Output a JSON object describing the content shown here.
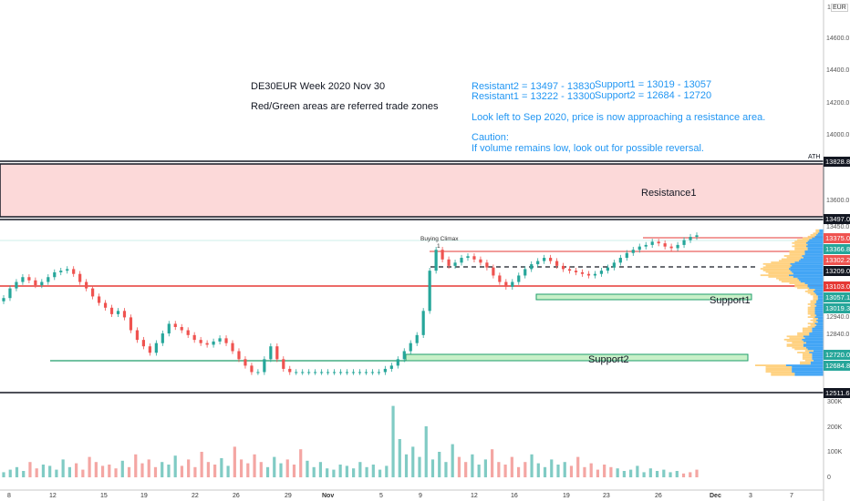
{
  "annotations": {
    "title": "DE30EUR Week 2020 Nov 30",
    "subtitle": "Red/Green areas are referred trade zones",
    "resistant2": "Resistant2 = 13497 - 13830",
    "resistant1": "Resistant1 = 13222 - 13300",
    "support1": "Support1 = 13019 - 13057",
    "support2": "Support2 = 12684 - 12720",
    "note": "Look left to Sep 2020, price is now approaching a resistance area.",
    "caution_title": "Caution:",
    "caution_text": "If volume remains low, look out for possible reversal.",
    "buying_climax": "Buying Climax",
    "buying_climax_mark": "1",
    "ath": "ATH",
    "resistance1_label": "Resistance1",
    "support1_label": "Support1",
    "support2_label": "Support2"
  },
  "axis": {
    "currency": "EUR",
    "top_tick": "1",
    "price_ticks": [
      "14600.0",
      "14400.0",
      "14200.0",
      "14000.0",
      "13600.0",
      "13450.0",
      "12940.0",
      "12840.0"
    ],
    "volume_ticks": [
      "300K",
      "200K",
      "100K",
      "0"
    ],
    "x_ticks": [
      "8",
      "12",
      "15",
      "19",
      "22",
      "26",
      "29",
      "Nov",
      "5",
      "9",
      "12",
      "16",
      "19",
      "23",
      "26",
      "Dec",
      "3",
      "7"
    ]
  },
  "price_labels": [
    {
      "text": "13828.8",
      "color": "#131722"
    },
    {
      "text": "13497.0",
      "color": "#131722"
    },
    {
      "text": "13375.0",
      "color": "#ef5350"
    },
    {
      "text": "13366.8",
      "color": "#26a69a"
    },
    {
      "text": "13302.2",
      "color": "#ef5350"
    },
    {
      "text": "13209.0",
      "color": "#131722"
    },
    {
      "text": "13103.0",
      "color": "#e53935"
    },
    {
      "text": "13057.1",
      "color": "#26a69a"
    },
    {
      "text": "13019.3",
      "color": "#26a69a"
    },
    {
      "text": "12720.0",
      "color": "#26a69a"
    },
    {
      "text": "12684.8",
      "color": "#26a69a"
    },
    {
      "text": "12511.6",
      "color": "#131722"
    }
  ],
  "colors": {
    "up": "#26a69a",
    "down": "#ef5350",
    "resistance_zone": "#fcd9d9",
    "support_zone": "#c8f0c8",
    "support_line": "#1e9e6a",
    "red_line": "#e53935",
    "profile_up": "#42a5f5",
    "profile_down": "#ffd180"
  },
  "chart_data": {
    "type": "candlestick",
    "symbol": "DE30EUR",
    "y_axis": {
      "min": 12500,
      "max": 14700,
      "unit": "EUR"
    },
    "levels": {
      "ath": 13828.8,
      "resistance2": [
        13497,
        13830
      ],
      "resistance1": [
        13222,
        13300
      ],
      "support1": [
        13019,
        13057
      ],
      "support2": [
        12684,
        12720
      ],
      "red_line": 13103.0,
      "dashed_line": 13209.0,
      "bottom_line": 12511.6
    },
    "price_close_series": [
      12980,
      13040,
      13080,
      13110,
      13090,
      13060,
      13080,
      13110,
      13140,
      13150,
      13160,
      13130,
      13080,
      13040,
      12990,
      12950,
      12920,
      12880,
      12900,
      12860,
      12780,
      12720,
      12680,
      12640,
      12700,
      12760,
      12820,
      12800,
      12780,
      12750,
      12720,
      12700,
      12690,
      12710,
      12730,
      12700,
      12650,
      12600,
      12560,
      12520,
      12520,
      12600,
      12680,
      12600,
      12540,
      12520,
      12520,
      12520,
      12520,
      12520,
      12520,
      12520,
      12520,
      12520,
      12520,
      12520,
      12520,
      12520,
      12520,
      12520,
      12540,
      12560,
      12600,
      12650,
      12700,
      12750,
      12900,
      13150,
      13280,
      13220,
      13180,
      13200,
      13230,
      13240,
      13220,
      13200,
      13170,
      13120,
      13080,
      13050,
      13080,
      13120,
      13160,
      13190,
      13210,
      13230,
      13210,
      13180,
      13160,
      13150,
      13140,
      13130,
      13120,
      13130,
      13150,
      13170,
      13200,
      13230,
      13260,
      13280,
      13300,
      13310,
      13330,
      13320,
      13300,
      13290,
      13310,
      13340,
      13360,
      13370
    ],
    "volume_series_k": [
      20,
      30,
      40,
      25,
      60,
      35,
      50,
      45,
      30,
      70,
      40,
      55,
      30,
      80,
      60,
      45,
      50,
      35,
      65,
      40,
      90,
      55,
      70,
      40,
      60,
      50,
      85,
      45,
      70,
      40,
      100,
      60,
      50,
      75,
      45,
      120,
      70,
      55,
      90,
      60,
      40,
      80,
      55,
      70,
      50,
      110,
      65,
      40,
      60,
      35,
      30,
      50,
      45,
      35,
      60,
      40,
      50,
      30,
      45,
      280,
      150,
      90,
      120,
      80,
      200,
      70,
      100,
      60,
      130,
      80,
      60,
      90,
      50,
      70,
      110,
      60,
      50,
      80,
      40,
      60,
      90,
      55,
      40,
      70,
      50,
      60,
      45,
      80,
      40,
      55,
      30,
      50,
      40,
      35,
      25,
      30,
      45,
      20,
      35,
      25,
      30,
      20,
      25,
      15,
      20,
      30
    ]
  }
}
